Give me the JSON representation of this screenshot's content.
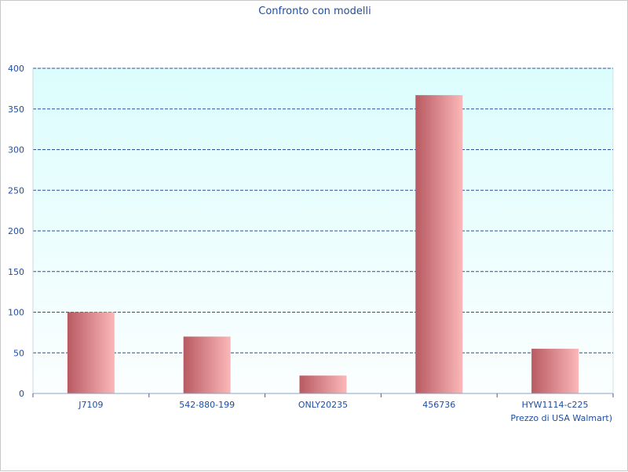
{
  "colors": {
    "text": "#1f4ea0",
    "grid": "#2b4f9a",
    "plot_bg_top": "#dcfdfd",
    "plot_bg_bottom": "#fbfefe",
    "bar_dark": "#b85a62",
    "bar_light": "#fbb8b8"
  },
  "chart_data": {
    "type": "bar",
    "title": "Confronto con modelli",
    "xlabel": "Prezzo di USA Walmart)",
    "ylabel": "",
    "categories": [
      "J7109",
      "542-880-199",
      "ONLY20235",
      "456736",
      "HYW1114-c225"
    ],
    "values": [
      100,
      70,
      22,
      367,
      55
    ],
    "ylim": [
      0,
      400
    ],
    "yticks": [
      0,
      50,
      100,
      150,
      200,
      250,
      300,
      350,
      400
    ],
    "grid": true,
    "legend": "none"
  }
}
